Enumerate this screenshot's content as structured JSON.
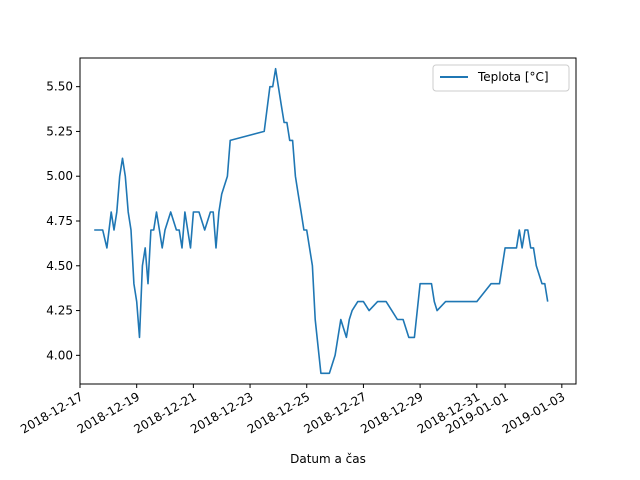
{
  "chart_data": {
    "type": "line",
    "title": "",
    "xlabel": "Datum a čas",
    "ylabel": "",
    "x_ticks": [
      "2018-12-17",
      "2018-12-19",
      "2018-12-21",
      "2018-12-23",
      "2018-12-25",
      "2018-12-27",
      "2018-12-29",
      "2018-12-31",
      "2019-01-01",
      "2019-01-03"
    ],
    "y_ticks": [
      "4.00",
      "4.25",
      "4.50",
      "4.75",
      "5.00",
      "5.25",
      "5.50"
    ],
    "xlim": [
      "2018-12-17 00:00",
      "2019-01-03 12:00"
    ],
    "ylim": [
      3.84,
      5.66
    ],
    "legend_position": "top-right",
    "grid": false,
    "colors": {
      "series": "#1f77b4",
      "axis": "#000000",
      "background": "#ffffff"
    },
    "series": [
      {
        "name": "Teplota [°C]",
        "x": [
          "2018-12-17 12:00",
          "2018-12-17 19:12",
          "2018-12-17 22:48",
          "2018-12-18 02:24",
          "2018-12-18 04:48",
          "2018-12-18 07:12",
          "2018-12-18 09:36",
          "2018-12-18 12:00",
          "2018-12-18 14:24",
          "2018-12-18 16:48",
          "2018-12-18 19:12",
          "2018-12-18 21:36",
          "2018-12-19 00:00",
          "2018-12-19 02:24",
          "2018-12-19 04:48",
          "2018-12-19 07:12",
          "2018-12-19 09:36",
          "2018-12-19 12:00",
          "2018-12-19 14:24",
          "2018-12-19 16:48",
          "2018-12-19 19:12",
          "2018-12-19 21:36",
          "2018-12-20 00:00",
          "2018-12-20 04:48",
          "2018-12-20 09:36",
          "2018-12-20 12:00",
          "2018-12-20 14:24",
          "2018-12-20 16:48",
          "2018-12-20 19:12",
          "2018-12-20 21:36",
          "2018-12-21 00:00",
          "2018-12-21 04:48",
          "2018-12-21 09:36",
          "2018-12-21 14:24",
          "2018-12-21 16:48",
          "2018-12-21 19:12",
          "2018-12-21 21:36",
          "2018-12-22 00:00",
          "2018-12-22 04:48",
          "2018-12-22 07:12",
          "2018-12-23 12:00",
          "2018-12-23 16:48",
          "2018-12-23 19:12",
          "2018-12-23 21:36",
          "2018-12-24 00:00",
          "2018-12-24 02:24",
          "2018-12-24 04:48",
          "2018-12-24 07:12",
          "2018-12-24 09:36",
          "2018-12-24 12:00",
          "2018-12-24 14:24",
          "2018-12-24 16:48",
          "2018-12-24 19:12",
          "2018-12-24 21:36",
          "2018-12-25 00:00",
          "2018-12-25 04:48",
          "2018-12-25 07:12",
          "2018-12-25 12:00",
          "2018-12-25 19:12",
          "2018-12-26 00:00",
          "2018-12-26 04:48",
          "2018-12-26 07:12",
          "2018-12-26 09:36",
          "2018-12-26 12:00",
          "2018-12-26 14:24",
          "2018-12-26 19:12",
          "2018-12-27 00:00",
          "2018-12-27 04:48",
          "2018-12-27 12:00",
          "2018-12-27 19:12",
          "2018-12-28 00:00",
          "2018-12-28 04:48",
          "2018-12-28 09:36",
          "2018-12-28 14:24",
          "2018-12-28 19:12",
          "2018-12-29 00:00",
          "2018-12-29 09:36",
          "2018-12-29 12:00",
          "2018-12-29 14:24",
          "2018-12-29 21:36",
          "2018-12-30 02:24",
          "2018-12-30 04:48",
          "2018-12-30 07:12",
          "2018-12-30 12:00",
          "2018-12-31 00:00",
          "2018-12-31 12:00",
          "2018-12-31 19:12",
          "2019-01-01 00:00",
          "2019-01-01 04:48",
          "2019-01-01 07:12",
          "2019-01-01 09:36",
          "2019-01-01 12:00",
          "2019-01-01 14:24",
          "2019-01-01 16:48",
          "2019-01-01 19:12",
          "2019-01-01 21:36",
          "2019-01-02 00:00",
          "2019-01-02 02:24",
          "2019-01-02 07:12",
          "2019-01-02 09:36",
          "2019-01-02 12:00"
        ],
        "y": [
          4.7,
          4.7,
          4.6,
          4.8,
          4.7,
          4.8,
          5.0,
          5.1,
          5.0,
          4.8,
          4.7,
          4.4,
          4.3,
          4.1,
          4.5,
          4.6,
          4.4,
          4.7,
          4.7,
          4.8,
          4.7,
          4.6,
          4.7,
          4.8,
          4.7,
          4.7,
          4.6,
          4.8,
          4.7,
          4.6,
          4.8,
          4.8,
          4.7,
          4.8,
          4.8,
          4.6,
          4.8,
          4.9,
          5.0,
          5.2,
          5.25,
          5.5,
          5.5,
          5.6,
          5.5,
          5.4,
          5.3,
          5.3,
          5.2,
          5.2,
          5.0,
          4.9,
          4.8,
          4.7,
          4.7,
          4.5,
          4.2,
          3.9,
          3.9,
          4.0,
          4.2,
          4.15,
          4.1,
          4.2,
          4.25,
          4.3,
          4.3,
          4.25,
          4.3,
          4.3,
          4.25,
          4.2,
          4.2,
          4.1,
          4.1,
          4.4,
          4.4,
          4.3,
          4.25,
          4.3,
          4.3,
          4.3,
          4.3,
          4.3,
          4.3,
          4.4,
          4.4,
          4.6,
          4.6,
          4.6,
          4.6,
          4.7,
          4.6,
          4.7,
          4.7,
          4.6,
          4.6,
          4.5,
          4.4,
          4.4,
          4.3
        ]
      }
    ]
  }
}
